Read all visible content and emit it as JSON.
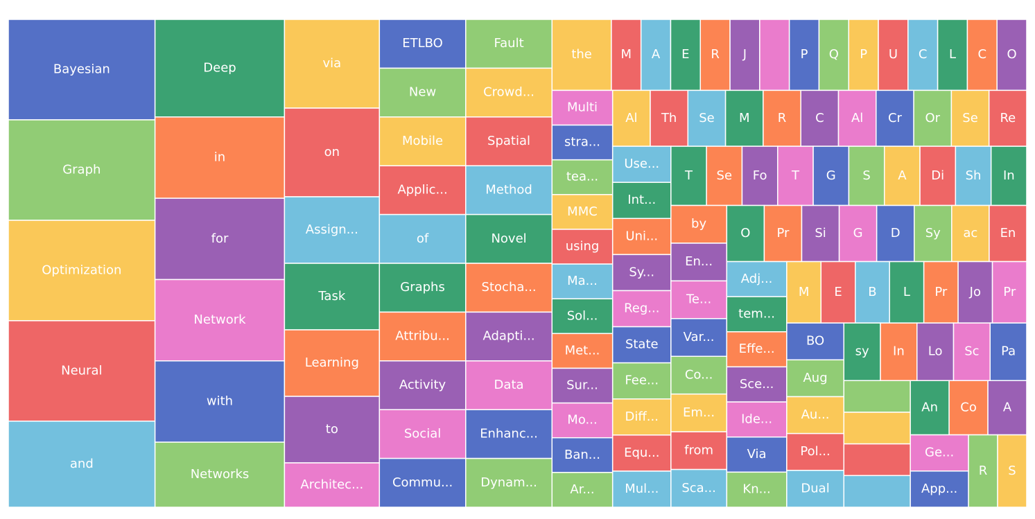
{
  "chart_data": {
    "type": "treemap",
    "categories": [
      "Bayesian",
      "Graph",
      "Optimization",
      "Neural",
      "and",
      "Deep",
      "in",
      "for",
      "Network",
      "with",
      "Networks",
      "via",
      "on",
      "Assign...",
      "Task",
      "Learning",
      "to",
      "Architec...",
      "ETLBO",
      "New",
      "Mobile",
      "Applic...",
      "of",
      "Graphs",
      "Attribu...",
      "Activity",
      "Social",
      "Commu...",
      "Fault",
      "Crowd...",
      "Spatial",
      "Method",
      "Novel",
      "Stocha...",
      "Adapti...",
      "Data",
      "Enhanc...",
      "Dynam...",
      "the",
      "M",
      "A",
      "E",
      "R",
      "J",
      null,
      "P",
      "Q",
      "P",
      "U",
      "C",
      "L",
      "C",
      "O",
      "Multi",
      "stra...",
      "tea...",
      "MMC",
      "using",
      "Ma...",
      "Sol...",
      "Met...",
      "Sur...",
      "Mo...",
      "Ban...",
      "Ar...",
      "Al",
      "Th",
      "Se",
      "M",
      "R",
      "C",
      "Al",
      "Cr",
      "Or",
      "Se",
      "Re",
      "Use...",
      "Int...",
      "Uni...",
      "Sy...",
      "Reg...",
      "State",
      "Fee...",
      "Diff...",
      "Equ...",
      "Mul...",
      "T",
      "Se",
      "Fo",
      "T",
      "G",
      "S",
      "A",
      "Di",
      "Sh",
      "In",
      "by",
      "En...",
      "Te...",
      "Var...",
      "Co...",
      "Em...",
      "from",
      "Sca...",
      "O",
      "Pr",
      "Si",
      "G",
      "D",
      "Sy",
      "ac",
      "En",
      "Adj...",
      "tem...",
      "Effe...",
      "Sce...",
      "Ide...",
      "Via",
      "Kn...",
      "M",
      "E",
      "B",
      "L",
      "Pr",
      "Jo",
      "Pr",
      "BO",
      "Aug",
      "Au...",
      "Pol...",
      "Dual",
      "sy",
      "In",
      "Lo",
      "Sc",
      "Pa",
      null,
      null,
      null,
      null,
      "An",
      "Co",
      "A",
      "Ge...",
      "App...",
      "R",
      "S"
    ],
    "values": [
      7,
      7,
      7,
      7,
      6,
      6,
      5,
      5,
      5,
      5,
      4,
      4,
      4,
      3,
      3,
      3,
      3,
      2,
      2,
      2,
      2,
      2,
      2,
      2,
      2,
      2,
      2,
      2,
      2,
      2,
      2,
      2,
      2,
      2,
      2,
      2,
      2,
      2,
      2,
      1,
      1,
      1,
      1,
      1,
      1,
      1,
      1,
      1,
      1,
      1,
      1,
      1,
      1,
      1,
      1,
      1,
      1,
      1,
      1,
      1,
      1,
      1,
      1,
      1,
      1,
      1,
      1,
      1,
      1,
      1,
      1,
      1,
      1,
      1,
      1,
      1,
      1,
      1,
      1,
      1,
      1,
      1,
      1,
      1,
      1,
      1,
      1,
      1,
      1,
      1,
      1,
      1,
      1,
      1,
      1,
      1,
      1,
      1,
      1,
      1,
      1,
      1,
      1,
      1,
      1,
      1,
      1,
      1,
      1,
      1,
      1,
      1,
      1,
      1,
      1,
      1,
      1,
      1,
      1,
      1,
      1,
      1,
      1,
      1,
      1,
      1,
      1,
      1,
      1,
      1,
      1,
      1,
      1,
      1,
      1,
      1,
      1,
      1,
      1,
      1,
      1,
      1,
      1,
      1,
      1,
      1,
      1
    ],
    "colors": [
      "#5470c6",
      "#91cc75",
      "#fac858",
      "#ee6666",
      "#73c0de",
      "#3ba272",
      "#fc8452",
      "#9a60b4",
      "#ea7ccc"
    ]
  }
}
